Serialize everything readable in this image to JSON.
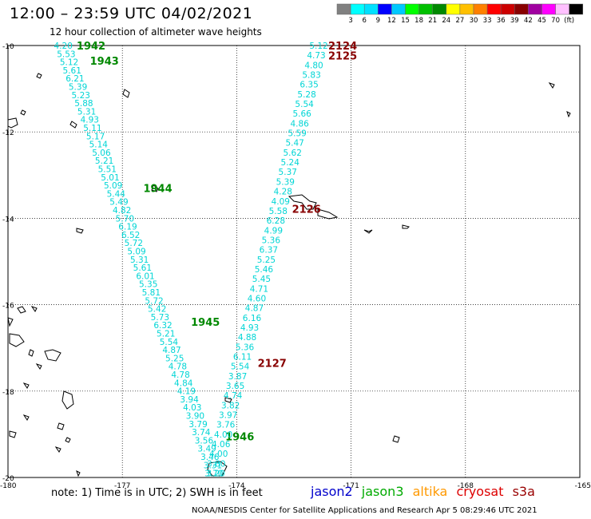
{
  "title": "12:00 – 23:59 UTC 04/02/2021",
  "subtitle": "12 hour collection of altimeter wave heights",
  "colorbar": {
    "colors": [
      "#808080",
      "#00ffff",
      "#00e0ff",
      "#0000ff",
      "#00c8ff",
      "#00ff00",
      "#00c000",
      "#008800",
      "#ffff00",
      "#ffc000",
      "#ff8000",
      "#ff0000",
      "#cc0000",
      "#880000",
      "#a000a0",
      "#ff00ff",
      "#ffc0ff",
      "#000000"
    ],
    "labels": [
      "3",
      "6",
      "9",
      "12",
      "15",
      "18",
      "21",
      "24",
      "27",
      "30",
      "33",
      "36",
      "39",
      "42",
      "45",
      "70",
      "(ft)"
    ]
  },
  "note": "note: 1) Time is in UTC; 2) SWH is in feet",
  "satellites": [
    {
      "name": "jason2",
      "color": "#0000cc"
    },
    {
      "name": "jason3",
      "color": "#00aa00"
    },
    {
      "name": "altika",
      "color": "#ff9900"
    },
    {
      "name": "cryosat",
      "color": "#dd0000"
    },
    {
      "name": "s3a",
      "color": "#990000"
    }
  ],
  "credit": "NOAA/NESDIS Center for Satellite Applications and Research   Apr  5 08:29:46 UTC 2021",
  "chart_data": {
    "type": "scatter",
    "xlabel": "",
    "ylabel": "",
    "x_ticks": [
      "-180",
      "-177",
      "-174",
      "-171",
      "-168",
      "-165"
    ],
    "y_ticks": [
      "-10",
      "-12",
      "-14",
      "-16",
      "-18",
      "-20"
    ],
    "xlim": [
      -180,
      -165
    ],
    "ylim": [
      -20,
      -10
    ],
    "grid": true,
    "label_color": "#00d5d5",
    "tracks": [
      {
        "satellite": "jason3",
        "color": "#008800",
        "start": [
          -178.55,
          -10.0
        ],
        "end": [
          -174.55,
          -19.9
        ],
        "values": [
          "4.20",
          "5.53",
          "5.12",
          "5.61",
          "6.21",
          "5.39",
          "5.23",
          "5.88",
          "5.31",
          "4.93",
          "5.11",
          "5.17",
          "5.14",
          "5.06",
          "5.21",
          "5.51",
          "5.01",
          "5.09",
          "5.44",
          "5.49",
          "4.82",
          "5.70",
          "6.19",
          "6.52",
          "5.72",
          "5.09",
          "5.31",
          "5.61",
          "6.01",
          "5.35",
          "5.81",
          "5.72",
          "5.42",
          "5.73",
          "6.32",
          "5.21",
          "5.54",
          "4.87",
          "5.25",
          "4.78",
          "4.78",
          "4.84",
          "4.19",
          "3.94",
          "4.03",
          "3.90",
          "3.79",
          "3.74",
          "3.56",
          "3.49",
          "3.46",
          "3.31",
          "3.20"
        ],
        "time_tags": [
          {
            "text": "1942",
            "lat": -10.0,
            "lon": -178.2
          },
          {
            "text": "1943",
            "lat": -10.35,
            "lon": -177.85
          },
          {
            "text": "1944",
            "lat": -13.3,
            "lon": -176.45
          },
          {
            "text": "1945",
            "lat": -16.4,
            "lon": -175.2
          },
          {
            "text": "1946",
            "lat": -19.05,
            "lon": -174.3
          }
        ]
      },
      {
        "satellite": "s3a",
        "color": "#880000",
        "start": [
          -171.85,
          -10.0
        ],
        "end": [
          -174.6,
          -19.9
        ],
        "values": [
          "5.12",
          "4.73",
          "4.80",
          "5.83",
          "6.35",
          "5.28",
          "5.54",
          "5.66",
          "4.86",
          "5.59",
          "5.47",
          "5.62",
          "5.24",
          "5.37",
          "5.39",
          "4.28",
          "4.09",
          "5.58",
          "6.28",
          "4.99",
          "5.36",
          "6.37",
          "5.25",
          "5.46",
          "5.45",
          "4.71",
          "4.60",
          "4.87",
          "6.16",
          "4.93",
          "4.88",
          "5.36",
          "6.11",
          "5.54",
          "3.87",
          "3.65",
          "4.74",
          "3.82",
          "3.97",
          "3.76",
          "4.00",
          "4.06",
          "4.00",
          "3.80",
          "3.70"
        ],
        "time_tags": [
          {
            "text": "2124",
            "lat": -10.0,
            "lon": -171.6
          },
          {
            "text": "2125",
            "lat": -10.23,
            "lon": -171.6
          },
          {
            "text": "2126",
            "lat": -13.78,
            "lon": -172.55
          },
          {
            "text": "2127",
            "lat": -17.35,
            "lon": -173.45
          }
        ]
      }
    ]
  }
}
